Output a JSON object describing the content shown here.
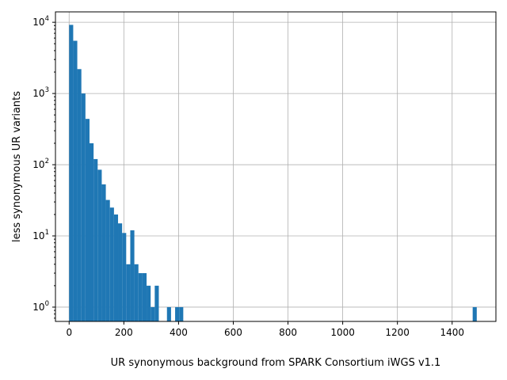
{
  "chart_data": {
    "type": "bar",
    "title": "",
    "xlabel": "UR synonymous background from SPARK Consortium iWGS v1.1",
    "ylabel": "less synonymous UR variants",
    "xlim": [
      -50,
      1560
    ],
    "ylim": [
      0.63,
      14000
    ],
    "yscale": "log",
    "grid": true,
    "bar_color": "#1f77b4",
    "x_ticks": [
      0,
      200,
      400,
      600,
      800,
      1000,
      1200,
      1400
    ],
    "x_tick_labels": [
      "0",
      "200",
      "400",
      "600",
      "800",
      "1000",
      "1200",
      "1400"
    ],
    "y_ticks": [
      1,
      10,
      100,
      1000,
      10000
    ],
    "y_tick_labels": [
      {
        "base": "10",
        "exp": "0"
      },
      {
        "base": "10",
        "exp": "1"
      },
      {
        "base": "10",
        "exp": "2"
      },
      {
        "base": "10",
        "exp": "3"
      },
      {
        "base": "10",
        "exp": "4"
      }
    ],
    "bin_width": 14.9,
    "bins": [
      {
        "x": 0,
        "count": 9200
      },
      {
        "x": 14.9,
        "count": 5500
      },
      {
        "x": 29.8,
        "count": 2200
      },
      {
        "x": 44.7,
        "count": 1000
      },
      {
        "x": 59.6,
        "count": 440
      },
      {
        "x": 74.5,
        "count": 200
      },
      {
        "x": 89.4,
        "count": 120
      },
      {
        "x": 104.3,
        "count": 85
      },
      {
        "x": 119.2,
        "count": 53
      },
      {
        "x": 134.1,
        "count": 32
      },
      {
        "x": 149.0,
        "count": 25
      },
      {
        "x": 163.9,
        "count": 20
      },
      {
        "x": 178.8,
        "count": 15
      },
      {
        "x": 193.7,
        "count": 11
      },
      {
        "x": 208.6,
        "count": 4
      },
      {
        "x": 223.5,
        "count": 12
      },
      {
        "x": 238.4,
        "count": 4
      },
      {
        "x": 253.3,
        "count": 3
      },
      {
        "x": 268.2,
        "count": 3
      },
      {
        "x": 283.1,
        "count": 2
      },
      {
        "x": 298.0,
        "count": 1
      },
      {
        "x": 312.9,
        "count": 2
      },
      {
        "x": 357.6,
        "count": 1
      },
      {
        "x": 387.4,
        "count": 1
      },
      {
        "x": 402.3,
        "count": 1
      },
      {
        "x": 1475.1,
        "count": 1
      }
    ]
  }
}
